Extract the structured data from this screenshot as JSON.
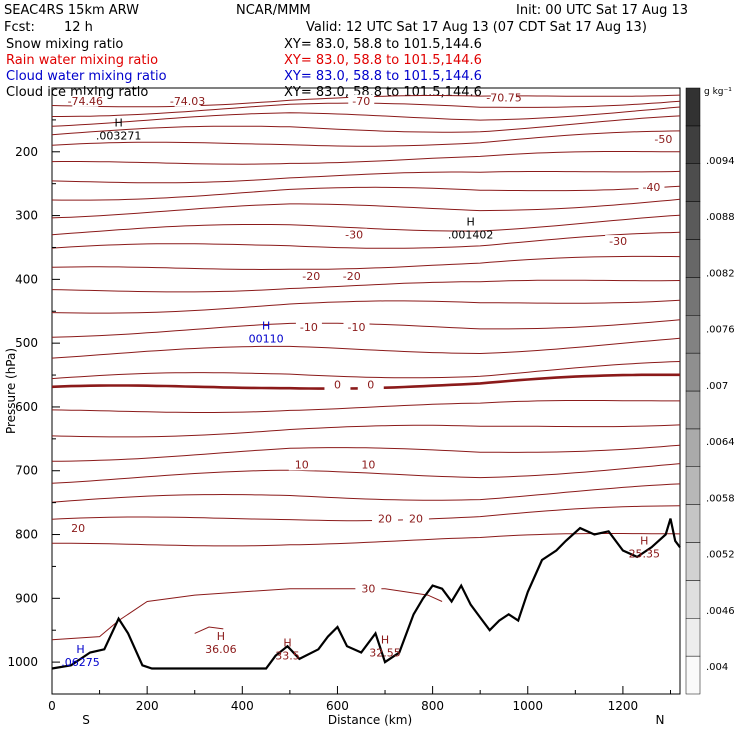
{
  "header": {
    "model": "SEAC4RS 15km ARW",
    "org": "NCAR/MMM",
    "init": "Init: 00 UTC Sat 17 Aug 13",
    "fcst_label": "Fcst:",
    "fcst_value": "12 h",
    "valid": "Valid: 12 UTC Sat 17 Aug 13 (07 CDT Sat 17 Aug 13)",
    "fields": [
      {
        "name": "Snow mixing ratio",
        "xy": "XY=  83.0, 58.8 to 101.5,144.6",
        "color": "#000000"
      },
      {
        "name": "Rain water mixing ratio",
        "xy": "XY=  83.0, 58.8 to 101.5,144.6",
        "color": "#e00000"
      },
      {
        "name": "Cloud water mixing ratio",
        "xy": "XY=  83.0, 58.8 to 101.5,144.6",
        "color": "#0000cc"
      },
      {
        "name": "Cloud ice mixing ratio",
        "xy": "XY=  83.0, 58.8 to 101.5,144.6",
        "color": "#000000"
      }
    ]
  },
  "chart_data": {
    "type": "cross-section",
    "xlabel": "Distance (km)",
    "ylabel": "Pressure (hPa)",
    "xlim": [
      0,
      1320
    ],
    "ylim": [
      100,
      1050
    ],
    "x_ticks": [
      0,
      200,
      400,
      600,
      800,
      1000,
      1200
    ],
    "x_tick_labels": [
      "0",
      "200",
      "400",
      "600",
      "800",
      "1000",
      "1200"
    ],
    "y_ticks": [
      200,
      300,
      400,
      500,
      600,
      700,
      800,
      900,
      1000
    ],
    "y_tick_labels": [
      "200",
      "300",
      "400",
      "500",
      "600",
      "700",
      "800",
      "900",
      "1000"
    ],
    "end_labels": {
      "left": "S",
      "right": "N"
    },
    "colorbar": {
      "unit": "g kg⁻¹",
      "ticks": [
        ".004",
        ".0046",
        ".0052",
        ".0058",
        ".0064",
        ".007",
        ".0076",
        ".0082",
        ".0088",
        ".0094"
      ]
    },
    "isotherm_labels": [
      {
        "x": 70,
        "p": 120,
        "text": "-74.46"
      },
      {
        "x": 285,
        "p": 120,
        "text": "-74.03"
      },
      {
        "x": 650,
        "p": 120,
        "text": "-70"
      },
      {
        "x": 950,
        "p": 115,
        "text": "-70.75"
      },
      {
        "x": 1285,
        "p": 180,
        "text": "-50"
      },
      {
        "x": 1260,
        "p": 255,
        "text": "-40"
      },
      {
        "x": 635,
        "p": 330,
        "text": "-30"
      },
      {
        "x": 1190,
        "p": 340,
        "text": "-30"
      },
      {
        "x": 545,
        "p": 395,
        "text": "-20"
      },
      {
        "x": 630,
        "p": 395,
        "text": "-20"
      },
      {
        "x": 540,
        "p": 475,
        "text": "-10"
      },
      {
        "x": 640,
        "p": 475,
        "text": "-10"
      },
      {
        "x": 600,
        "p": 565,
        "text": "0"
      },
      {
        "x": 670,
        "p": 565,
        "text": "0"
      },
      {
        "x": 525,
        "p": 690,
        "text": "10"
      },
      {
        "x": 665,
        "p": 690,
        "text": "10"
      },
      {
        "x": 55,
        "p": 790,
        "text": "20"
      },
      {
        "x": 700,
        "p": 775,
        "text": "20"
      },
      {
        "x": 765,
        "p": 775,
        "text": "20"
      },
      {
        "x": 665,
        "p": 885,
        "text": "30"
      }
    ],
    "extrema": [
      {
        "x": 140,
        "p": 170,
        "letter": "H",
        "value": ".003271",
        "color": "#000000"
      },
      {
        "x": 880,
        "p": 325,
        "letter": "H",
        "value": ".001402",
        "color": "#000000"
      },
      {
        "x": 450,
        "p": 488,
        "letter": "H",
        "value": "00110",
        "color": "#0000cc"
      },
      {
        "x": 60,
        "p": 995,
        "letter": "H",
        "value": ".06275",
        "color": "#0000cc"
      },
      {
        "x": 355,
        "p": 975,
        "letter": "H",
        "value": "36.06",
        "color": "#8b1a1a"
      },
      {
        "x": 495,
        "p": 985,
        "letter": "H",
        "value": "33.5",
        "color": "#8b1a1a"
      },
      {
        "x": 700,
        "p": 980,
        "letter": "H",
        "value": "32.55",
        "color": "#8b1a1a"
      },
      {
        "x": 1245,
        "p": 825,
        "letter": "H",
        "value": "25.35",
        "color": "#8b1a1a"
      }
    ]
  }
}
